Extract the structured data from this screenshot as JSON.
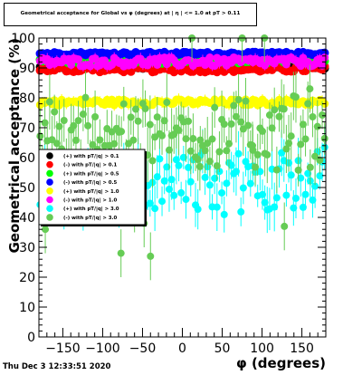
{
  "chart_data": {
    "type": "scatter",
    "title": "Geometrical acceptance for Global vs φ (degrees) at | η | <= 1.0 at pT > 0.11",
    "xlabel": "φ (degrees)",
    "ylabel": "Geometrical acceptance (%)",
    "xlim": [
      -180,
      180
    ],
    "ylim": [
      0,
      100
    ],
    "xticks": [
      -150,
      -100,
      -50,
      0,
      50,
      100,
      150
    ],
    "xtick_labels": [
      "−150",
      "−100",
      "−50",
      "0",
      "50",
      "100",
      "150"
    ],
    "yticks": [
      0,
      10,
      20,
      30,
      40,
      50,
      60,
      70,
      80,
      90,
      100
    ],
    "ytick_labels": [
      "0",
      "10",
      "20",
      "30",
      "40",
      "50",
      "60",
      "70",
      "80",
      "90",
      "100"
    ],
    "grid": false,
    "legend_position": "middle-left",
    "series": [
      {
        "name": "(+) with pT/|q| > 0.1",
        "color": "#000000",
        "base": 90.2,
        "spread": 0.4,
        "err": 0.6,
        "outliers": []
      },
      {
        "name": "(-) with pT/|q| > 0.1",
        "color": "#ff0000",
        "base": 89.6,
        "spread": 1.0,
        "err": 1.0,
        "outliers": []
      },
      {
        "name": "(+) with pT/|q| > 0.5",
        "color": "#00ff00",
        "base": 92.3,
        "spread": 0.8,
        "err": 0.8,
        "outliers": []
      },
      {
        "name": "(-) with pT/|q| > 0.5",
        "color": "#0000ff",
        "base": 94.8,
        "spread": 0.5,
        "err": 0.6,
        "outliers": []
      },
      {
        "name": "(+) with pT/|q| > 1.0",
        "color": "#ffff00",
        "base": 78.5,
        "spread": 1.0,
        "err": 1.5,
        "outliers": []
      },
      {
        "name": "(-) with pT/|q| > 1.0",
        "color": "#ff00ff",
        "base": 92.0,
        "spread": 1.5,
        "err": 1.5,
        "outliers": []
      },
      {
        "name": "(+) with pT/|q| > 3.0",
        "color": "#00ffff",
        "base": 52.0,
        "spread": 9.0,
        "err": 6.0,
        "outliers": []
      },
      {
        "name": "(-) with pT/|q| > 3.0",
        "color": "#66cc55",
        "base": 68.0,
        "spread": 10.0,
        "err": 7.0,
        "outliers": [
          [
            -172,
            36
          ],
          [
            -157,
            50
          ],
          [
            -90,
            45
          ],
          [
            -77,
            28
          ],
          [
            -60,
            43
          ],
          [
            -48,
            38
          ],
          [
            -40,
            27
          ],
          [
            12,
            100
          ],
          [
            75,
            100
          ],
          [
            103,
            100
          ],
          [
            128,
            37
          ],
          [
            22,
            57
          ],
          [
            88,
            64
          ],
          [
            160,
            83
          ]
        ]
      }
    ],
    "legend_entries": [
      "(+) with pT/|q| > 0.1",
      "(-) with pT/|q| > 0.1",
      "(+) with pT/|q| > 0.5",
      "(-) with pT/|q| > 0.5",
      "(+) with pT/|q| > 1.0",
      "(-) with pT/|q| > 1.0",
      "(+) with pT/|q| > 3.0",
      "(-) with pT/|q| > 3.0"
    ]
  },
  "footer": {
    "timestamp": "Thu Dec  3 12:33:51 2020"
  }
}
